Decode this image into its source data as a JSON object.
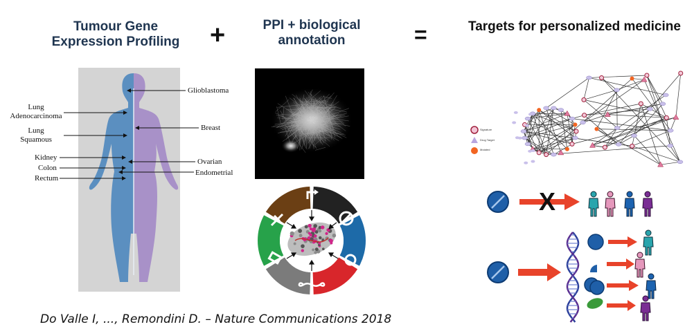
{
  "headings": {
    "profiling": [
      "Tumour Gene",
      "Expression Profiling"
    ],
    "ppi": [
      "PPI + biological",
      "annotation"
    ],
    "targets": "Targets for personalized medicine"
  },
  "operators": {
    "plus": "+",
    "equals": "="
  },
  "organ_labels": {
    "lung_adeno": [
      "Lung",
      "Adenocarcinoma"
    ],
    "lung_squamous": [
      "Lung",
      "Squamous"
    ],
    "kidney": "Kidney",
    "colon": "Colon",
    "rectum": "Rectum",
    "glioblastoma": "Glioblastoma",
    "breast": "Breast",
    "ovarian": "Ovarian",
    "endometrial": "Endometrial"
  },
  "network_legend": [
    "Signature",
    "Drug Target",
    "Mutated"
  ],
  "treatment_cross": "X",
  "citation": "Do Valle I, ..., Remondini D. – Nature Communications 2018",
  "colors": {
    "body_left": "#5b8fc0",
    "body_right": "#a891c8",
    "panel_bg": "#d4d4d4",
    "arrow_red": "#e8432a",
    "pill_blue": "#1f5fa8",
    "wheel": [
      "#27a24a",
      "#6b3f14",
      "#222222",
      "#1d6aa8",
      "#d8262b",
      "#7b7b7b"
    ]
  },
  "icons": [
    "pill-icon",
    "person-icon",
    "dna-icon",
    "network-graph",
    "pathway-wheel"
  ]
}
